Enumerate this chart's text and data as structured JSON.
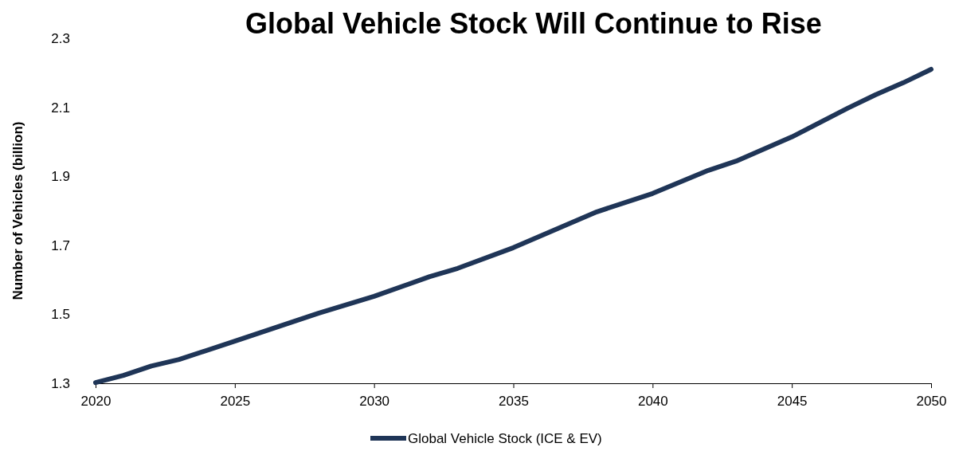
{
  "chart_data": {
    "type": "line",
    "title": "Global Vehicle Stock Will Continue to Rise",
    "ylabel": "Number of Vehicles (billion)",
    "x": [
      2020,
      2021,
      2022,
      2023,
      2025,
      2028,
      2030,
      2032,
      2033,
      2035,
      2038,
      2040,
      2042,
      2043,
      2045,
      2047,
      2048,
      2049,
      2050
    ],
    "series": [
      {
        "name": "Global Vehicle Stock (ICE & EV)",
        "color": "#1f3557",
        "values": [
          1.302,
          1.323,
          1.35,
          1.369,
          1.422,
          1.503,
          1.552,
          1.609,
          1.633,
          1.693,
          1.797,
          1.85,
          1.917,
          1.944,
          2.014,
          2.097,
          2.136,
          2.171,
          2.21
        ]
      }
    ],
    "xlim": [
      2020,
      2050
    ],
    "xticks": [
      2020,
      2025,
      2030,
      2035,
      2040,
      2045,
      2050
    ],
    "ylim": [
      1.3,
      2.3
    ],
    "yticks": [
      {
        "value": 1.3,
        "label": "1.3"
      },
      {
        "value": 1.5,
        "label": "1.5"
      },
      {
        "value": 1.7,
        "label": "1.7"
      },
      {
        "value": 1.9,
        "label": "1.9"
      },
      {
        "value": 2.1,
        "label": "2.1"
      },
      {
        "value": 2.3,
        "label": "2.3"
      }
    ],
    "grid": false,
    "legend": "bottom",
    "marker": "none",
    "line_style": "solid"
  }
}
